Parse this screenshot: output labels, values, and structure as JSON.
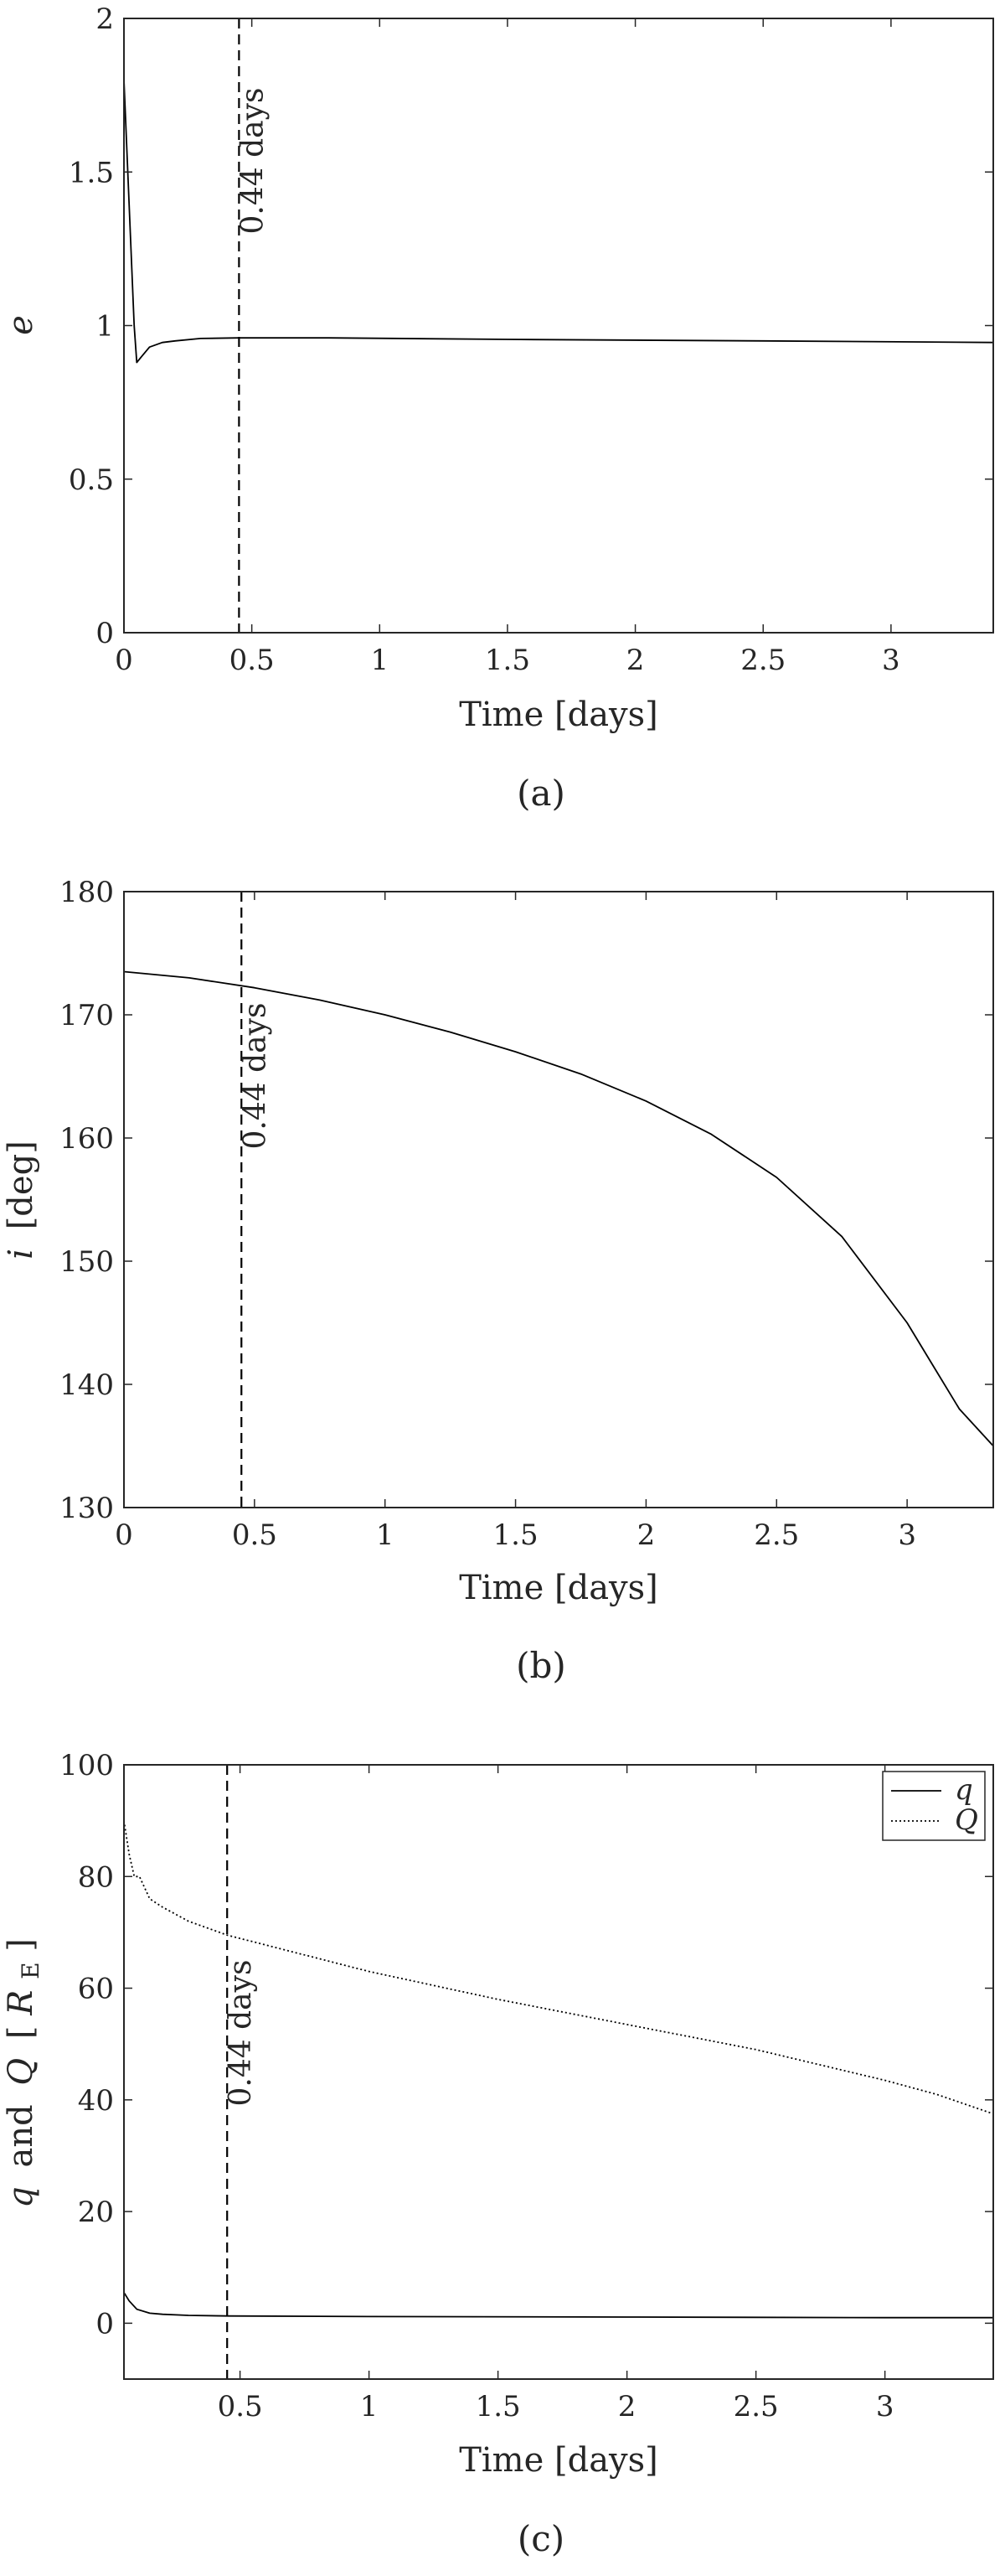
{
  "chart_data": [
    {
      "type": "line",
      "panel_label": "(a)",
      "xlabel": "Time [days]",
      "ylabel": "e",
      "xlim": [
        0,
        3.4
      ],
      "ylim": [
        0,
        2
      ],
      "xticks": [
        0,
        0.5,
        1,
        1.5,
        2,
        2.5,
        3
      ],
      "xtick_labels": [
        "0",
        "0.5",
        "1",
        "1.5",
        "2",
        "2.5",
        "3"
      ],
      "yticks": [
        0,
        0.5,
        1,
        1.5,
        2
      ],
      "ytick_labels": [
        "0",
        "0.5",
        "1",
        "1.5",
        "2"
      ],
      "grid": false,
      "marker_line": {
        "x": 0.45,
        "label": "0.44 days",
        "style": "dashed"
      },
      "series": [
        {
          "style": "solid",
          "x": [
            0,
            0.02,
            0.04,
            0.05,
            0.07,
            0.1,
            0.15,
            0.2,
            0.3,
            0.45,
            0.8,
            1.5,
            2.5,
            3.4
          ],
          "y": [
            1.8,
            1.4,
            1.0,
            0.88,
            0.9,
            0.93,
            0.945,
            0.95,
            0.958,
            0.96,
            0.96,
            0.955,
            0.95,
            0.945
          ]
        }
      ]
    },
    {
      "type": "line",
      "panel_label": "(b)",
      "xlabel": "Time [days]",
      "ylabel_symbol": "i",
      "ylabel_unit": "[deg]",
      "xlim": [
        0,
        3.33
      ],
      "ylim": [
        130,
        180
      ],
      "xticks": [
        0,
        0.5,
        1,
        1.5,
        2,
        2.5,
        3
      ],
      "xtick_labels": [
        "0",
        "0.5",
        "1",
        "1.5",
        "2",
        "2.5",
        "3"
      ],
      "yticks": [
        130,
        140,
        150,
        160,
        170,
        180
      ],
      "ytick_labels": [
        "130",
        "140",
        "150",
        "160",
        "170",
        "180"
      ],
      "grid": false,
      "marker_line": {
        "x": 0.45,
        "label": "0.44 days",
        "style": "dashed"
      },
      "series": [
        {
          "style": "solid",
          "x": [
            0,
            0.25,
            0.5,
            0.75,
            1.0,
            1.25,
            1.5,
            1.75,
            2.0,
            2.25,
            2.5,
            2.75,
            3.0,
            3.1,
            3.2,
            3.33
          ],
          "y": [
            173.5,
            173.0,
            172.2,
            171.2,
            170.0,
            168.6,
            167.0,
            165.2,
            163.0,
            160.3,
            156.8,
            152.0,
            145.0,
            141.5,
            138.0,
            135.0
          ]
        }
      ]
    },
    {
      "type": "line",
      "panel_label": "(c)",
      "xlabel": "Time [days]",
      "ylabel_q": "q",
      "ylabel_and": "and",
      "ylabel_Q": "Q",
      "ylabel_unit_open": "[",
      "ylabel_R": "R",
      "ylabel_sub": "E",
      "ylabel_unit_close": "]",
      "xlim": [
        0.05,
        3.42
      ],
      "ylim": [
        -10,
        100
      ],
      "xticks": [
        0.5,
        1,
        1.5,
        2,
        2.5,
        3
      ],
      "xtick_labels": [
        "0.5",
        "1",
        "1.5",
        "2",
        "2.5",
        "3"
      ],
      "yticks": [
        0,
        20,
        40,
        60,
        80,
        100
      ],
      "ytick_labels": [
        "0",
        "20",
        "40",
        "60",
        "80",
        "100"
      ],
      "grid": false,
      "legend_position": "top-right",
      "marker_line": {
        "x": 0.45,
        "label": "0.44 days",
        "style": "dashed"
      },
      "series": [
        {
          "name": "q",
          "style": "solid",
          "x": [
            0.05,
            0.07,
            0.1,
            0.15,
            0.2,
            0.3,
            0.45,
            1.0,
            2.0,
            3.0,
            3.42
          ],
          "y": [
            5.5,
            4.0,
            2.5,
            1.8,
            1.6,
            1.4,
            1.3,
            1.2,
            1.1,
            1.0,
            1.0
          ]
        },
        {
          "name": "Q",
          "style": "dotted",
          "x": [
            0.05,
            0.07,
            0.09,
            0.11,
            0.15,
            0.2,
            0.3,
            0.45,
            1.0,
            1.5,
            2.0,
            2.5,
            3.0,
            3.2,
            3.42
          ],
          "y": [
            90,
            84,
            80,
            80,
            76,
            74.5,
            72,
            69.5,
            63,
            58,
            53.5,
            49,
            43.5,
            41,
            37.5
          ]
        }
      ]
    }
  ]
}
